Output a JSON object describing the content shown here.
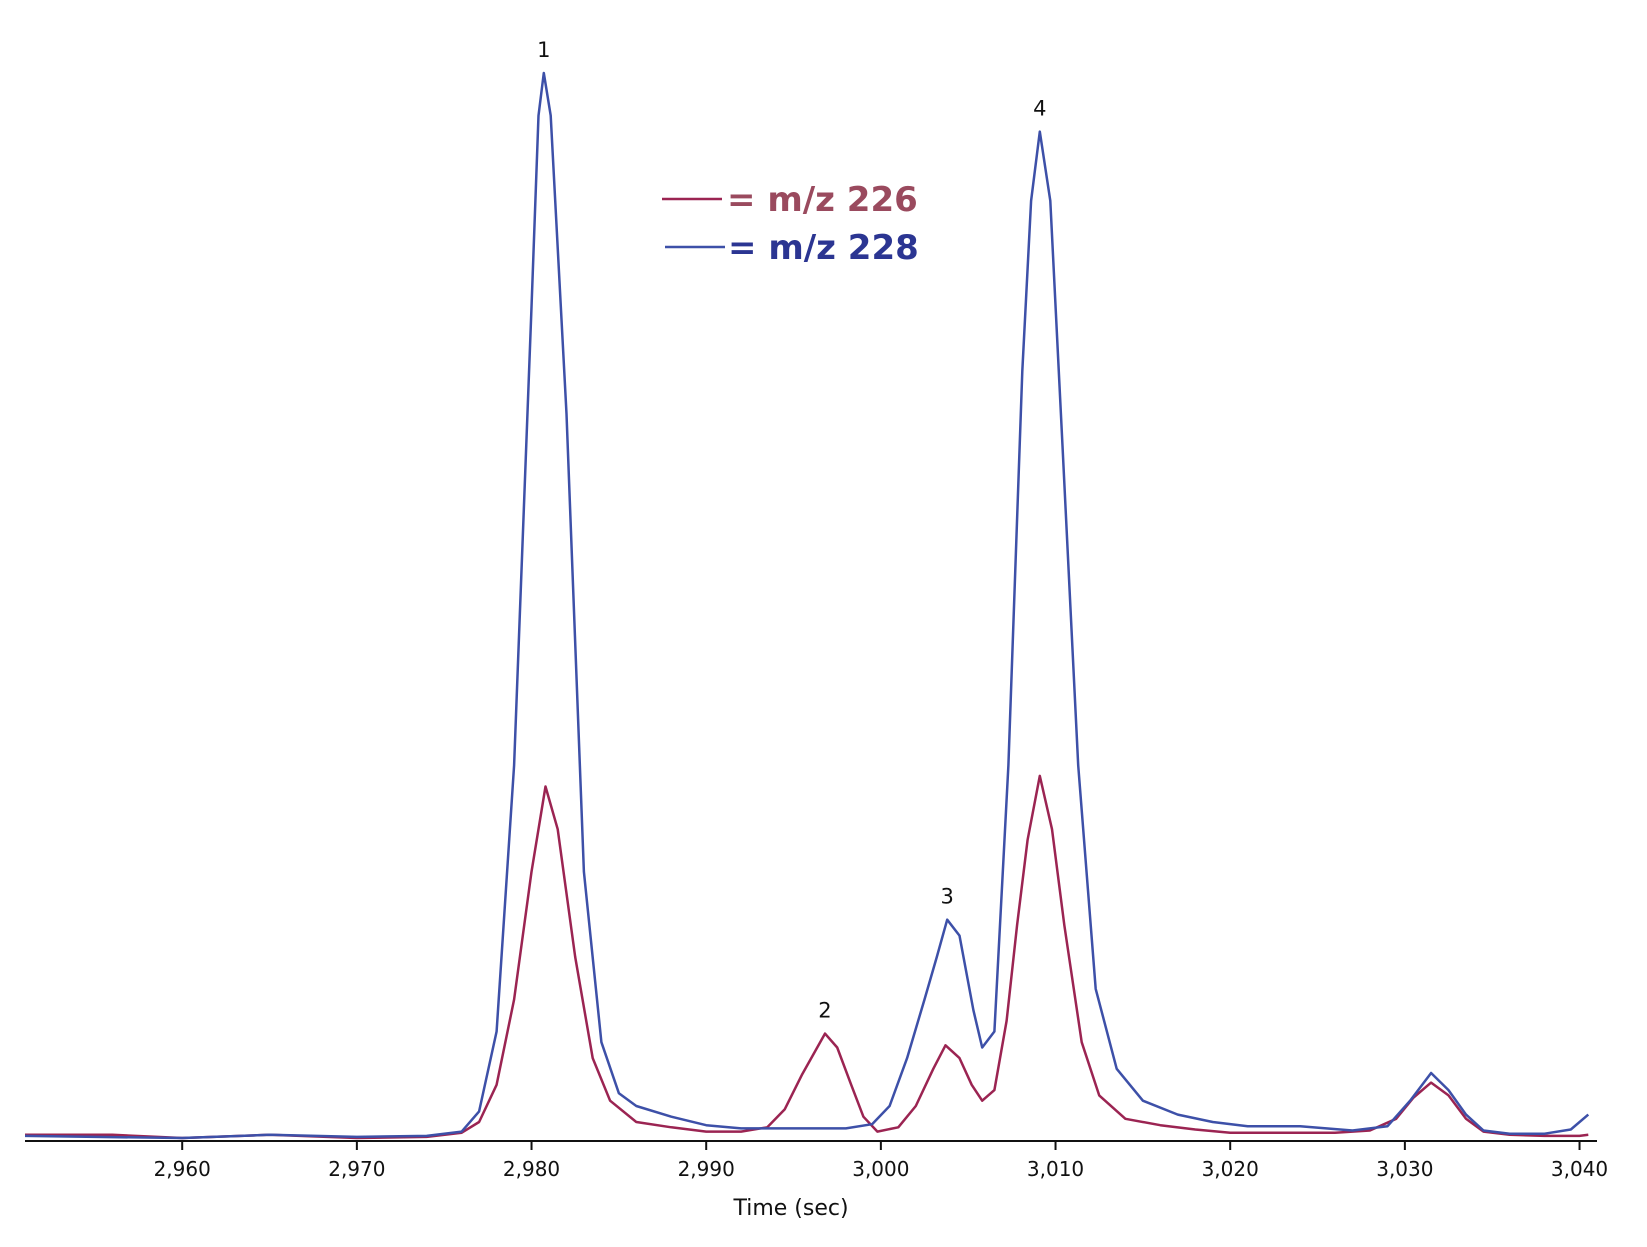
{
  "chart_data": {
    "type": "line",
    "title": "",
    "xlabel": "Time (sec)",
    "ylabel": "",
    "xlim": [
      2951,
      3041
    ],
    "ylim": [
      0,
      100
    ],
    "xticks": [
      2960,
      2970,
      2980,
      2990,
      3000,
      3010,
      3020,
      3030,
      3040
    ],
    "xtick_labels": [
      "2,960",
      "2,970",
      "2,980",
      "2,990",
      "3,000",
      "3,010",
      "3,020",
      "3,030",
      "3,040"
    ],
    "grid": false,
    "legend_position": "top-center",
    "legend_entries": [
      "= m/z 226",
      "= m/z 228"
    ],
    "series": [
      {
        "name": "m/z 226",
        "color": "#9b2452",
        "legend_text_color": "#9a4a5e",
        "x": [
          2951,
          2956,
          2960,
          2965,
          2970,
          2974,
          2976,
          2977,
          2978,
          2979,
          2980,
          2980.8,
          2981.5,
          2982.5,
          2983.5,
          2984.5,
          2986,
          2988,
          2990,
          2992,
          2993.5,
          2994.5,
          2995.5,
          2996.8,
          2997.5,
          2998.3,
          2999,
          2999.8,
          3001,
          3002,
          3003,
          3003.7,
          3004.5,
          3005.2,
          3005.8,
          3006.5,
          3007.2,
          3007.8,
          3008.4,
          3009.1,
          3009.8,
          3010.5,
          3011.5,
          3012.5,
          3014,
          3016,
          3018,
          3020,
          3022,
          3024,
          3026,
          3028,
          3029.5,
          3030.5,
          3031.5,
          3032.5,
          3033.5,
          3034.5,
          3036,
          3038,
          3040,
          3040.5
        ],
        "values": [
          0.3,
          0.3,
          0.0,
          0.3,
          0.0,
          0.1,
          0.5,
          1.5,
          5.0,
          13.0,
          25.0,
          33.0,
          29.0,
          17.0,
          7.5,
          3.5,
          1.5,
          1.0,
          0.6,
          0.6,
          1.0,
          2.7,
          6.0,
          9.8,
          8.5,
          5.0,
          2.0,
          0.6,
          1.0,
          3.0,
          6.5,
          8.7,
          7.5,
          5.0,
          3.5,
          4.5,
          11.0,
          20.0,
          28.0,
          34.0,
          29.0,
          20.0,
          9.0,
          4.0,
          1.8,
          1.2,
          0.8,
          0.5,
          0.5,
          0.5,
          0.5,
          0.7,
          1.8,
          3.8,
          5.2,
          4.0,
          1.8,
          0.6,
          0.3,
          0.2,
          0.2,
          0.3
        ]
      },
      {
        "name": "m/z 228",
        "color": "#3d50a8",
        "legend_text_color": "#2b3592",
        "x": [
          2951,
          2955,
          2960,
          2965,
          2970,
          2974,
          2976,
          2977,
          2978,
          2979,
          2980,
          2980.4,
          2980.7,
          2981.1,
          2982,
          2983,
          2984,
          2985,
          2986,
          2988,
          2990,
          2992,
          2994,
          2996,
          2998,
          2999.5,
          3000.5,
          3001.5,
          3002.5,
          3003.2,
          3003.8,
          3004.5,
          3005.3,
          3005.8,
          3006.5,
          3007.3,
          3008.1,
          3008.6,
          3009.1,
          3009.7,
          3010.4,
          3011.3,
          3012.3,
          3013.5,
          3015,
          3017,
          3019,
          3021,
          3024,
          3027,
          3029,
          3030.3,
          3031.5,
          3032.5,
          3033.5,
          3034.5,
          3036,
          3038,
          3039.5,
          3040.5
        ],
        "values": [
          0.2,
          0.1,
          0.0,
          0.3,
          0.1,
          0.2,
          0.6,
          2.5,
          10.0,
          35.0,
          78.0,
          96.0,
          100.0,
          96.0,
          68.0,
          25.0,
          9.0,
          4.2,
          3.0,
          2.0,
          1.2,
          0.9,
          0.9,
          0.9,
          0.9,
          1.3,
          3.0,
          7.5,
          13.0,
          17.0,
          20.5,
          19.0,
          12.0,
          8.5,
          10.0,
          35.0,
          72.0,
          88.0,
          94.5,
          88.0,
          65.0,
          35.0,
          14.0,
          6.5,
          3.5,
          2.2,
          1.5,
          1.1,
          1.1,
          0.7,
          1.1,
          3.5,
          6.1,
          4.5,
          2.2,
          0.7,
          0.4,
          0.4,
          0.8,
          2.2
        ]
      }
    ],
    "annotations": [
      {
        "text": "1",
        "x": 2980.7,
        "y": 100
      },
      {
        "text": "2",
        "x": 2996.8,
        "y": 9.8
      },
      {
        "text": "3",
        "x": 3003.8,
        "y": 20.5
      },
      {
        "text": "4",
        "x": 3009.1,
        "y": 94.5
      }
    ]
  }
}
